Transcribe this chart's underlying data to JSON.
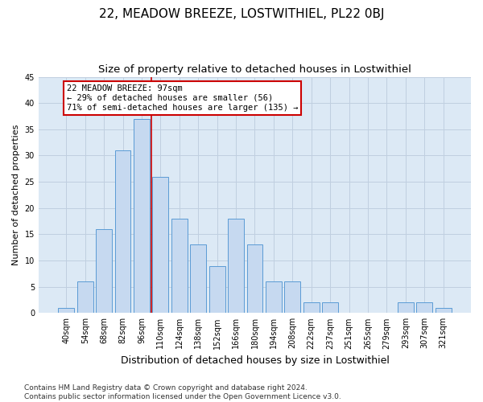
{
  "title": "22, MEADOW BREEZE, LOSTWITHIEL, PL22 0BJ",
  "subtitle": "Size of property relative to detached houses in Lostwithiel",
  "xlabel": "Distribution of detached houses by size in Lostwithiel",
  "ylabel": "Number of detached properties",
  "categories": [
    "40sqm",
    "54sqm",
    "68sqm",
    "82sqm",
    "96sqm",
    "110sqm",
    "124sqm",
    "138sqm",
    "152sqm",
    "166sqm",
    "180sqm",
    "194sqm",
    "208sqm",
    "222sqm",
    "237sqm",
    "251sqm",
    "265sqm",
    "279sqm",
    "293sqm",
    "307sqm",
    "321sqm"
  ],
  "values": [
    1,
    6,
    16,
    31,
    37,
    26,
    18,
    13,
    9,
    18,
    13,
    6,
    6,
    2,
    2,
    0,
    0,
    0,
    2,
    2,
    1
  ],
  "bar_color": "#c6d9f0",
  "bar_edge_color": "#5b9bd5",
  "vline_x": 4.5,
  "vline_color": "#cc0000",
  "annotation_text": "22 MEADOW BREEZE: 97sqm\n← 29% of detached houses are smaller (56)\n71% of semi-detached houses are larger (135) →",
  "annotation_box_color": "#ffffff",
  "annotation_box_edge_color": "#cc0000",
  "ylim": [
    0,
    45
  ],
  "yticks": [
    0,
    5,
    10,
    15,
    20,
    25,
    30,
    35,
    40,
    45
  ],
  "background_color": "#ffffff",
  "ax_background_color": "#dce9f5",
  "grid_color": "#c0cfe0",
  "footer_text": "Contains HM Land Registry data © Crown copyright and database right 2024.\nContains public sector information licensed under the Open Government Licence v3.0.",
  "title_fontsize": 11,
  "subtitle_fontsize": 9.5,
  "xlabel_fontsize": 9,
  "ylabel_fontsize": 8,
  "tick_fontsize": 7,
  "footer_fontsize": 6.5,
  "annotation_fontsize": 7.5
}
